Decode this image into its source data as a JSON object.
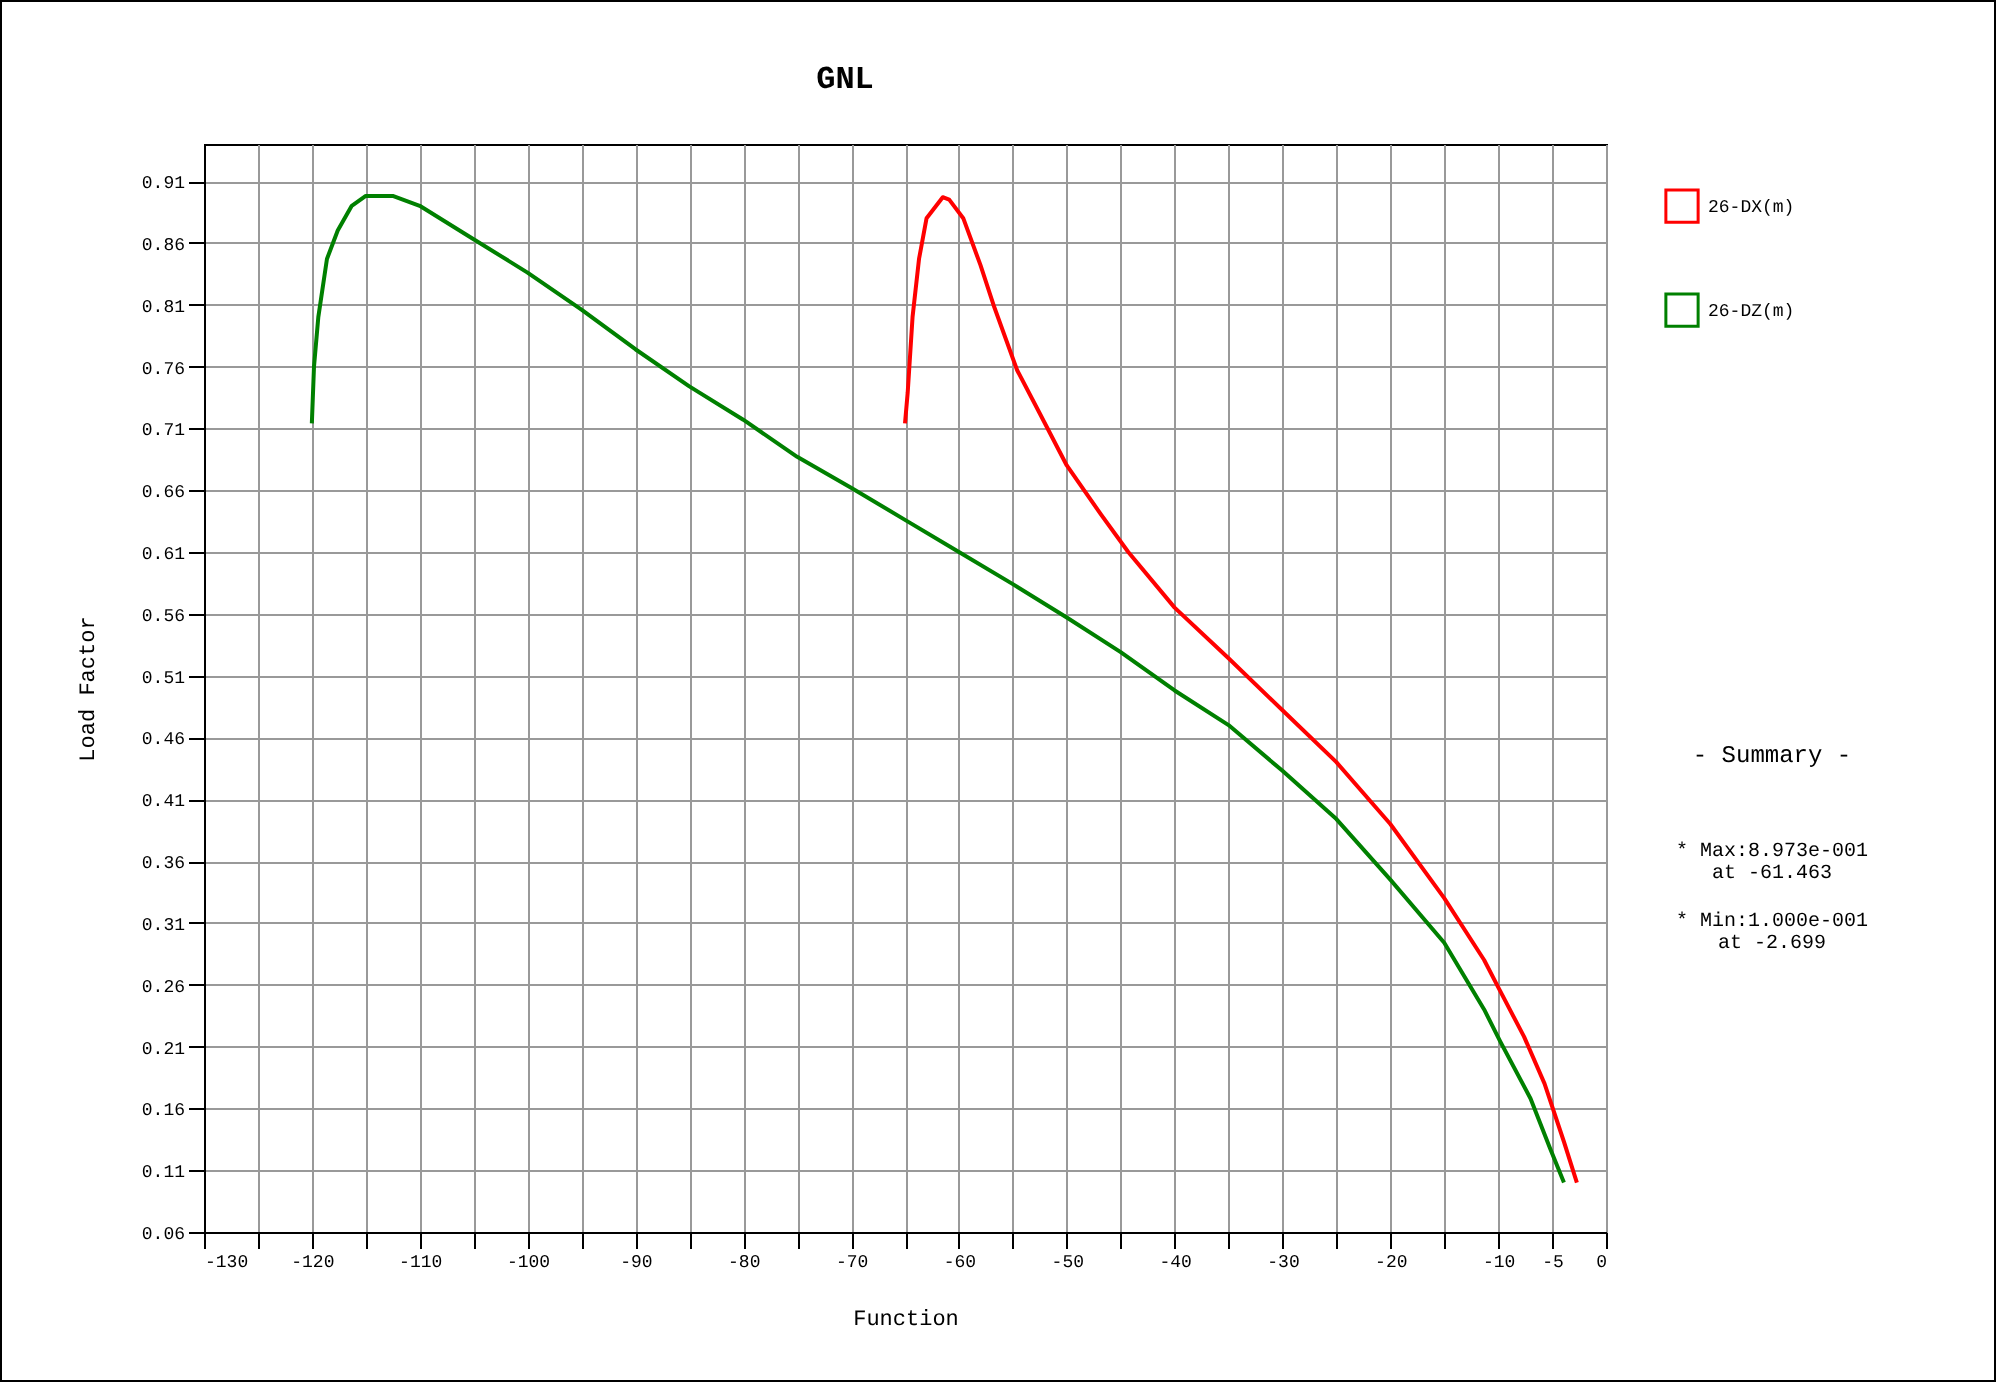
{
  "chart_data": {
    "type": "line",
    "title": "GNL",
    "xlabel": "Function",
    "ylabel": "Load Factor",
    "xlim": [
      -130,
      0
    ],
    "ylim": [
      0.06,
      0.94
    ],
    "xticks": [
      -130,
      {
        "value": -125,
        "label": null
      },
      -120,
      {
        "value": -115,
        "label": null
      },
      -110,
      {
        "value": -105,
        "label": null
      },
      -100,
      {
        "value": -95,
        "label": null
      },
      -90,
      {
        "value": -85,
        "label": null
      },
      -80,
      {
        "value": -75,
        "label": null
      },
      -70,
      {
        "value": -65,
        "label": null
      },
      -60,
      {
        "value": -55,
        "label": null
      },
      -50,
      {
        "value": -45,
        "label": null
      },
      -40,
      {
        "value": -35,
        "label": null
      },
      -30,
      {
        "value": -25,
        "label": null
      },
      -20,
      {
        "value": -15,
        "label": null
      },
      -10,
      -5,
      0
    ],
    "yticks": [
      0.06,
      0.11,
      0.16,
      0.21,
      0.26,
      0.31,
      0.36,
      0.41,
      0.46,
      0.51,
      0.56,
      0.61,
      0.66,
      0.71,
      0.76,
      0.81,
      0.86,
      0.91
    ],
    "grid": true,
    "legend": "right",
    "series": [
      {
        "name": "26-DX(m)",
        "color": "#ff0000",
        "x": [
          -65,
          -64.75,
          -64.3,
          -63.7,
          -63,
          -61.5,
          -60.9,
          -59.6,
          -58,
          -56.8,
          -54.6,
          -52.5,
          -50,
          -46.8,
          -44.3,
          -40,
          -35,
          -30,
          -25,
          -20,
          -15,
          -11.3,
          -10,
          -7.6,
          -5.7,
          -3.9,
          -2.7
        ],
        "values": [
          0.714,
          0.739,
          0.8,
          0.847,
          0.88,
          0.897,
          0.895,
          0.88,
          0.842,
          0.81,
          0.757,
          0.722,
          0.68,
          0.64,
          0.61,
          0.565,
          0.524,
          0.482,
          0.44,
          0.39,
          0.33,
          0.28,
          0.258,
          0.218,
          0.18,
          0.133,
          0.1
        ]
      },
      {
        "name": "26-DZ(m)",
        "color": "#008000",
        "x": [
          -120,
          -119.8,
          -119.4,
          -118.6,
          -117.6,
          -116.3,
          -115,
          -112.5,
          -110,
          -105,
          -100,
          -95,
          -90,
          -85,
          -80,
          -75,
          -70,
          -65,
          -60,
          -55,
          -50,
          -45,
          -40,
          -35,
          -30,
          -25,
          -20,
          -15,
          -11.3,
          -9.8,
          -7,
          -5.2,
          -3.9
        ],
        "values": [
          0.714,
          0.76,
          0.8,
          0.847,
          0.87,
          0.89,
          0.898,
          0.898,
          0.89,
          0.863,
          0.836,
          0.806,
          0.774,
          0.744,
          0.717,
          0.687,
          0.662,
          0.636,
          0.61,
          0.584,
          0.557,
          0.529,
          0.498,
          0.47,
          0.433,
          0.394,
          0.345,
          0.294,
          0.24,
          0.214,
          0.168,
          0.128,
          0.1
        ]
      }
    ],
    "annotations": [
      "- Summary -",
      "* Max:8.973e-001\nat -61.463",
      "* Min:1.000e-001\nat -2.699"
    ]
  }
}
